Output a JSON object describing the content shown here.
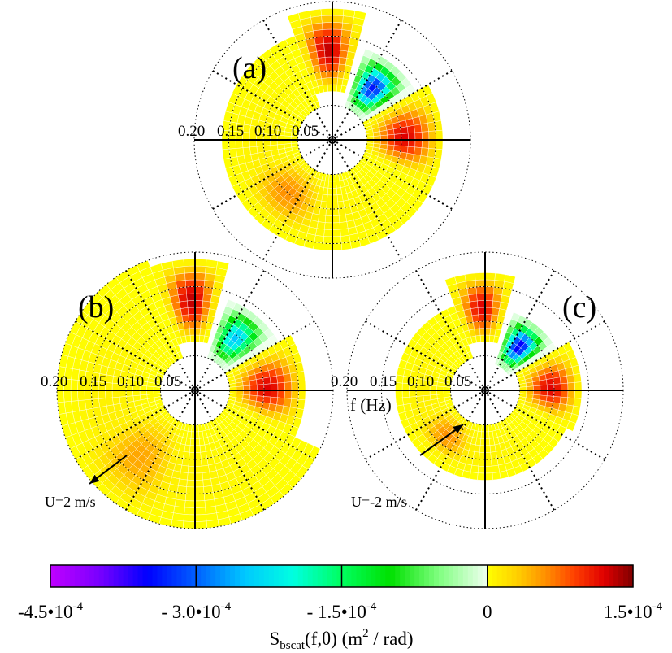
{
  "chart_data": {
    "type": "heatmap",
    "subtype": "polar-directional-spectrum",
    "radial_variable": "f (Hz)",
    "radial_ticks": [
      "0.20",
      "0.15",
      "0.10",
      "0.05"
    ],
    "radial_range": [
      0,
      0.2
    ],
    "angular_variable": "theta",
    "panels": [
      {
        "label": "(a)",
        "current_annotation": null,
        "lobes": [
          {
            "name": "north-positive",
            "theta_deg": [
              -20,
              15
            ],
            "f_range": [
              0.07,
              0.19
            ],
            "peak_value": 0.00013
          },
          {
            "name": "northeast-negative",
            "theta_deg": [
              18,
              58
            ],
            "f_range": [
              0.05,
              0.14
            ],
            "peak_value": -0.00034
          },
          {
            "name": "east-positive",
            "theta_deg": [
              60,
              115
            ],
            "f_range": [
              0.05,
              0.16
            ],
            "peak_value": 0.00012
          },
          {
            "name": "southwest-positive",
            "theta_deg": [
              185,
              255
            ],
            "f_range": [
              0.05,
              0.15
            ],
            "peak_value": 6e-05
          },
          {
            "name": "background-positive",
            "theta_deg": [
              115,
              340
            ],
            "f_range": [
              0.05,
              0.16
            ],
            "peak_value": 1e-05
          }
        ]
      },
      {
        "label": "(b)",
        "current_annotation": "U=2 m/s",
        "lobes": [
          {
            "name": "north-positive",
            "theta_deg": [
              -20,
              15
            ],
            "f_range": [
              0.07,
              0.19
            ],
            "peak_value": 0.00013
          },
          {
            "name": "northeast-negative",
            "theta_deg": [
              18,
              58
            ],
            "f_range": [
              0.05,
              0.14
            ],
            "peak_value": -0.00025
          },
          {
            "name": "east-positive",
            "theta_deg": [
              60,
              115
            ],
            "f_range": [
              0.05,
              0.16
            ],
            "peak_value": 0.00012
          },
          {
            "name": "southwest-positive",
            "theta_deg": [
              190,
              250
            ],
            "f_range": [
              0.05,
              0.2
            ],
            "peak_value": 5e-05
          },
          {
            "name": "background-positive",
            "theta_deg": [
              115,
              340
            ],
            "f_range": [
              0.05,
              0.2
            ],
            "peak_value": 1e-05
          }
        ]
      },
      {
        "label": "(c)",
        "current_annotation": "U=-2 m/s",
        "lobes": [
          {
            "name": "north-positive",
            "theta_deg": [
              -20,
              15
            ],
            "f_range": [
              0.07,
              0.17
            ],
            "peak_value": 0.00012
          },
          {
            "name": "northeast-negative",
            "theta_deg": [
              18,
              58
            ],
            "f_range": [
              0.04,
              0.12
            ],
            "peak_value": -0.00036
          },
          {
            "name": "east-positive",
            "theta_deg": [
              60,
              115
            ],
            "f_range": [
              0.05,
              0.14
            ],
            "peak_value": 0.00012
          },
          {
            "name": "southwest-positive",
            "theta_deg": [
              190,
              250
            ],
            "f_range": [
              0.05,
              0.12
            ],
            "peak_value": 6e-05
          },
          {
            "name": "background-positive",
            "theta_deg": [
              115,
              340
            ],
            "f_range": [
              0.05,
              0.13
            ],
            "peak_value": 1e-05
          }
        ]
      }
    ],
    "colorbar": {
      "range": [
        -0.00045,
        0.00015
      ],
      "tick_values": [
        -0.00045,
        -0.0003,
        -0.00015,
        0,
        0.00015
      ],
      "tick_labels": [
        {
          "mantissa": "-4.5•10",
          "exponent": "-4"
        },
        {
          "mantissa": "- 3.0•10",
          "exponent": "-4"
        },
        {
          "mantissa": "- 1.5•10",
          "exponent": "-4"
        },
        {
          "mantissa": "0",
          "exponent": ""
        },
        {
          "mantissa": "1.5•10",
          "exponent": "-4"
        }
      ],
      "label": {
        "main": "S",
        "sub": "bscat",
        "args": "(f,θ)",
        "units_open": "  (m",
        "units_sup": "2",
        "units_close": " / rad)"
      },
      "negative_colors": [
        "#c000ff",
        "#7a00ff",
        "#0000ff",
        "#0060ff",
        "#00c8ff",
        "#00ffe0",
        "#00ff60",
        "#00e000",
        "#80ff80",
        "#f0fff0"
      ],
      "positive_colors": [
        "#ffff00",
        "#ffd000",
        "#ff9000",
        "#ff4000",
        "#e00000",
        "#800000"
      ]
    },
    "axis_label_c": "f (Hz)"
  }
}
